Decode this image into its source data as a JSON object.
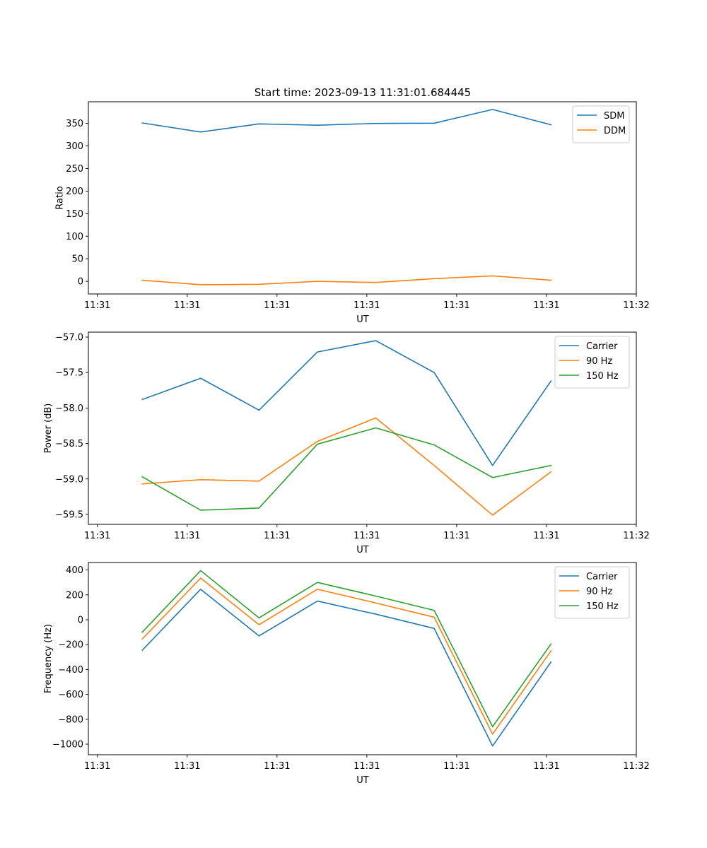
{
  "figure_title": "Start time: 2023-09-13 11:31:01.684445",
  "colors": {
    "c0": "#1f77b4",
    "c1": "#ff7f0e",
    "c2": "#2ca02c"
  },
  "chart_data": [
    {
      "type": "line",
      "title": "Start time: 2023-09-13 11:31:01.684445",
      "xlabel": "UT",
      "ylabel": "Ratio",
      "legend_position": "top-right",
      "grid": false,
      "x_tick_values": [
        0,
        1,
        2,
        3,
        4,
        5,
        6
      ],
      "x_tick_labels": [
        "11:31",
        "11:31",
        "11:31",
        "11:31",
        "11:31",
        "11:31",
        "11:32"
      ],
      "xlim": [
        -0.1,
        6.0
      ],
      "x": [
        0.5,
        1.15,
        1.8,
        2.45,
        3.1,
        3.75,
        4.4,
        5.05
      ],
      "ylim": [
        -28,
        398
      ],
      "y_ticks": [
        0,
        50,
        100,
        150,
        200,
        250,
        300,
        350
      ],
      "y_tick_labels": [
        "0",
        "50",
        "100",
        "150",
        "200",
        "250",
        "300",
        "350"
      ],
      "series": [
        {
          "name": "SDM",
          "color": "#1f77b4",
          "values": [
            351,
            331,
            349,
            346,
            350,
            350.5,
            381,
            347
          ]
        },
        {
          "name": "DDM",
          "color": "#ff7f0e",
          "values": [
            2.5,
            -7.5,
            -6.5,
            0,
            -2.5,
            6,
            12,
            2.5
          ]
        }
      ]
    },
    {
      "type": "line",
      "xlabel": "UT",
      "ylabel": "Power (dB)",
      "legend_position": "top-right",
      "grid": false,
      "x_tick_values": [
        0,
        1,
        2,
        3,
        4,
        5,
        6
      ],
      "x_tick_labels": [
        "11:31",
        "11:31",
        "11:31",
        "11:31",
        "11:31",
        "11:31",
        "11:32"
      ],
      "xlim": [
        -0.1,
        6.0
      ],
      "x": [
        0.5,
        1.15,
        1.8,
        2.45,
        3.1,
        3.75,
        4.4,
        5.05
      ],
      "ylim": [
        -59.64,
        -56.93
      ],
      "y_ticks": [
        -57.0,
        -57.5,
        -58.0,
        -58.5,
        -59.0,
        -59.5
      ],
      "y_tick_labels": [
        "−57.0",
        "−57.5",
        "−58.0",
        "−58.5",
        "−59.0",
        "−59.5"
      ],
      "series": [
        {
          "name": "Carrier",
          "color": "#1f77b4",
          "values": [
            -57.88,
            -57.58,
            -58.03,
            -57.21,
            -57.05,
            -57.5,
            -58.81,
            -57.62
          ]
        },
        {
          "name": "90 Hz",
          "color": "#ff7f0e",
          "values": [
            -59.07,
            -59.01,
            -59.03,
            -58.47,
            -58.14,
            -58.81,
            -59.51,
            -58.9
          ]
        },
        {
          "name": "150 Hz",
          "color": "#2ca02c",
          "values": [
            -58.97,
            -59.44,
            -59.41,
            -58.51,
            -58.28,
            -58.52,
            -58.98,
            -58.81
          ]
        }
      ]
    },
    {
      "type": "line",
      "xlabel": "UT",
      "ylabel": "Frequency (Hz)",
      "legend_position": "top-right",
      "grid": false,
      "x_tick_values": [
        0,
        1,
        2,
        3,
        4,
        5,
        6
      ],
      "x_tick_labels": [
        "11:31",
        "11:31",
        "11:31",
        "11:31",
        "11:31",
        "11:31",
        "11:32"
      ],
      "xlim": [
        -0.1,
        6.0
      ],
      "x": [
        0.5,
        1.15,
        1.8,
        2.45,
        3.1,
        3.75,
        4.4,
        5.05
      ],
      "ylim": [
        -1085,
        460
      ],
      "y_ticks": [
        400,
        200,
        0,
        -200,
        -400,
        -600,
        -800,
        -1000
      ],
      "y_tick_labels": [
        "400",
        "200",
        "0",
        "−200",
        "−400",
        "−600",
        "−800",
        "−1000"
      ],
      "series": [
        {
          "name": "Carrier",
          "color": "#1f77b4",
          "values": [
            -245,
            245,
            -130,
            150,
            45,
            -70,
            -1015,
            -340
          ]
        },
        {
          "name": "90 Hz",
          "color": "#ff7f0e",
          "values": [
            -155,
            335,
            -40,
            245,
            135,
            20,
            -920,
            -250
          ]
        },
        {
          "name": "150 Hz",
          "color": "#2ca02c",
          "values": [
            -100,
            395,
            15,
            300,
            190,
            75,
            -860,
            -195
          ]
        }
      ]
    }
  ]
}
